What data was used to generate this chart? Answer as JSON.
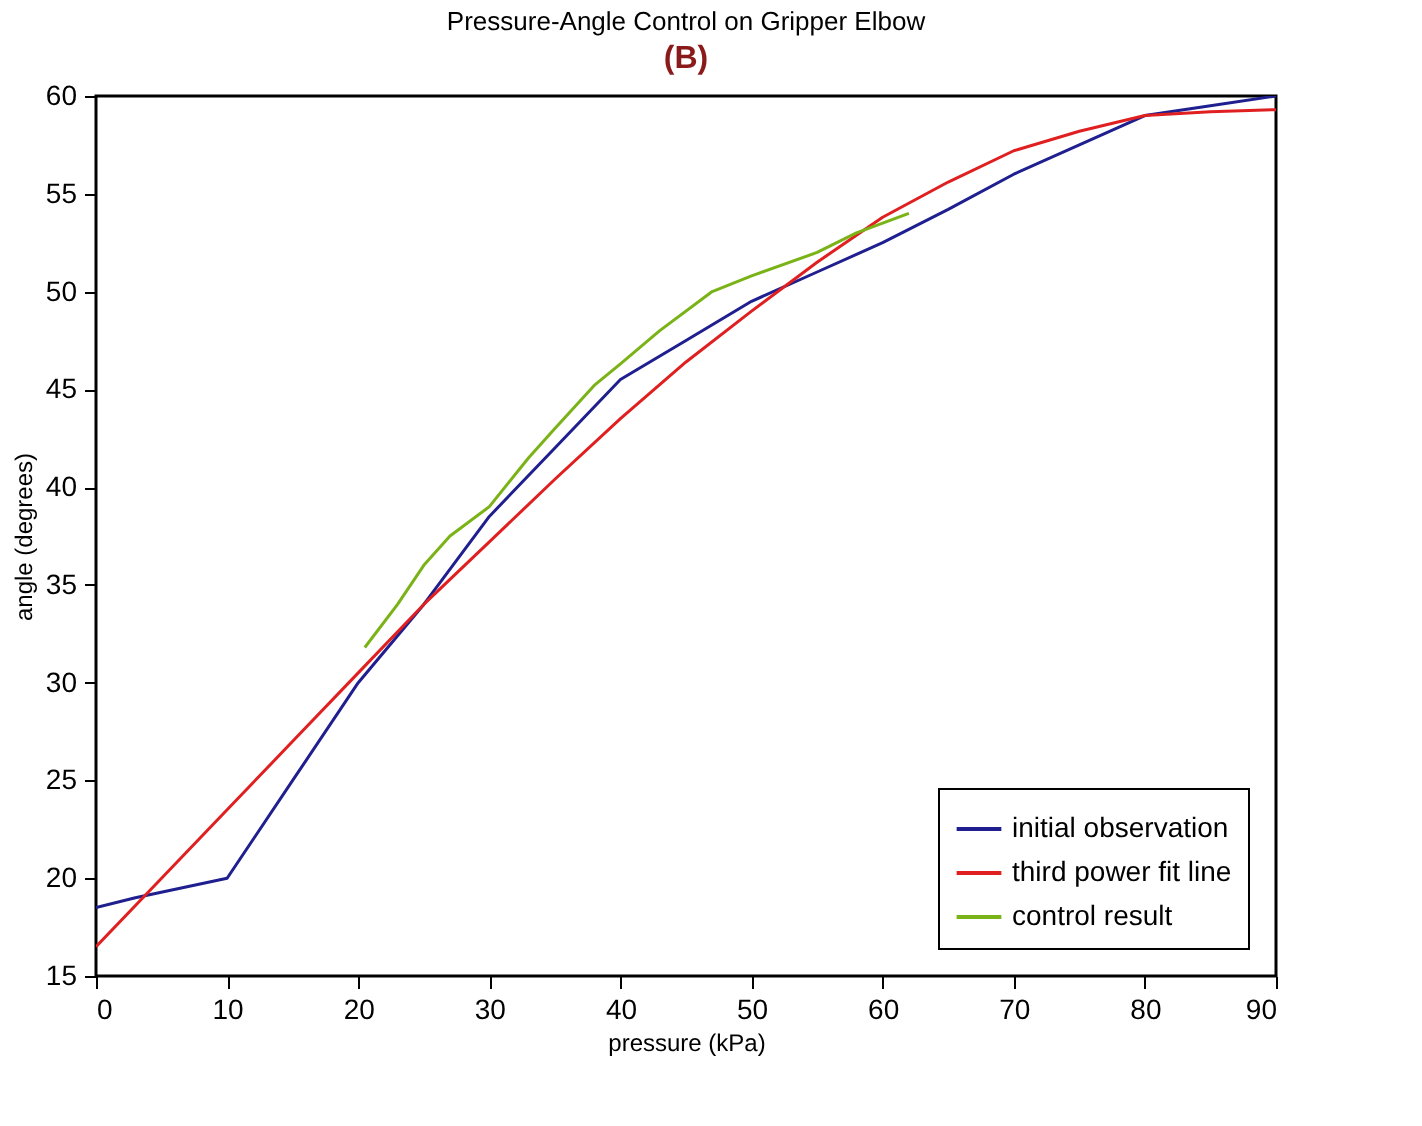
{
  "chart_data": {
    "type": "line",
    "title": "Pressure-Angle Control on Gripper Elbow",
    "xlabel": "pressure (kPa)",
    "ylabel": "angle (degrees)",
    "annotations": [
      "(B)"
    ],
    "xlim": [
      0,
      90
    ],
    "ylim": [
      15,
      60
    ],
    "xticks": [
      0,
      10,
      20,
      30,
      40,
      50,
      60,
      70,
      80,
      90
    ],
    "yticks": [
      15,
      20,
      25,
      30,
      35,
      40,
      45,
      50,
      55,
      60
    ],
    "grid": false,
    "legend": "bottom right",
    "line_style": "solid",
    "marker": "none",
    "series": [
      {
        "name": "initial observation",
        "color": "#1f1f8f",
        "x": [
          0,
          3,
          10,
          15,
          20,
          25,
          30,
          35,
          40,
          45,
          50,
          55,
          60,
          65,
          70,
          75,
          80,
          85,
          90
        ],
        "values": [
          18.5,
          19,
          20,
          25,
          30,
          34,
          38.5,
          42,
          45.5,
          47.5,
          49.5,
          51,
          52.5,
          54.2,
          56,
          57.5,
          59,
          59.5,
          60
        ]
      },
      {
        "name": "third power fit line",
        "color": "#e02020",
        "x": [
          0,
          5,
          10,
          15,
          20,
          25,
          30,
          35,
          40,
          45,
          50,
          55,
          60,
          65,
          70,
          75,
          80,
          85,
          90
        ],
        "values": [
          16.5,
          20,
          23.5,
          27,
          30.5,
          34,
          37.2,
          40.4,
          43.5,
          46.4,
          49,
          51.5,
          53.8,
          55.6,
          57.2,
          58.2,
          59,
          59.2,
          59.3
        ]
      },
      {
        "name": "control result",
        "color": "#7ab317",
        "x": [
          20.5,
          23,
          25,
          27,
          30,
          33,
          35,
          38,
          40,
          43,
          47,
          50,
          55,
          58,
          62
        ],
        "values": [
          31.8,
          34,
          36,
          37.5,
          39,
          41.5,
          43,
          45.2,
          46.3,
          48,
          50,
          50.8,
          52,
          53,
          54
        ]
      }
    ]
  }
}
